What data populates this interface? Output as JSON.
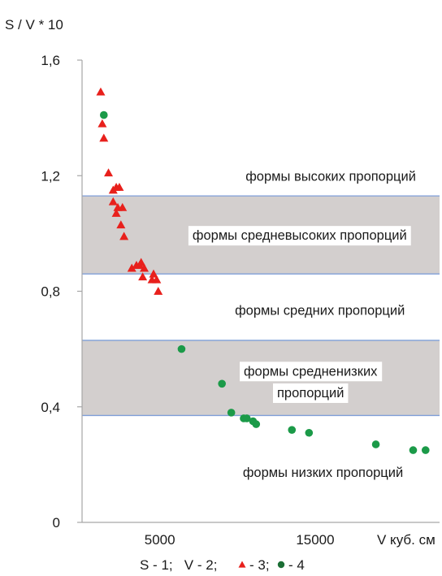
{
  "chart_data": {
    "type": "scatter",
    "title": "",
    "ylabel": "S / V * 10",
    "xlabel": "V куб. см",
    "xlim": [
      0,
      23000
    ],
    "ylim": [
      0,
      1.6
    ],
    "x_tick_values": [
      5000,
      15000
    ],
    "x_tick_labels": [
      "5000",
      "15000"
    ],
    "y_tick_values": [
      0,
      0.4,
      0.8,
      1.2,
      1.6
    ],
    "y_tick_labels": [
      "0",
      "0,4",
      "0,8",
      "1,2",
      "1,6"
    ],
    "grid": false,
    "bands": [
      {
        "y0": 0.86,
        "y1": 1.13,
        "fill": "#d3cfce",
        "edge": "#7f9fd8"
      },
      {
        "y0": 0.37,
        "y1": 0.63,
        "fill": "#d3cfce",
        "edge": "#7f9fd8"
      }
    ],
    "region_labels": [
      {
        "text": "формы высоких пропорций",
        "x": 16000,
        "y": 1.2,
        "boxed": false
      },
      {
        "text": "формы средневысоких пропорций",
        "x": 14000,
        "y": 0.995,
        "boxed": true
      },
      {
        "text": "формы средних пропорций",
        "x": 15300,
        "y": 0.735,
        "boxed": false
      },
      {
        "text": "формы средненизких",
        "x": 14700,
        "y": 0.525,
        "boxed": true
      },
      {
        "text": "пропорций",
        "x": 14700,
        "y": 0.45,
        "boxed": true
      },
      {
        "text": "формы низких пропорций",
        "x": 15500,
        "y": 0.175,
        "boxed": false
      }
    ],
    "series": [
      {
        "marker": "triangle",
        "color": "#e8201c",
        "points": [
          [
            1200,
            1.49
          ],
          [
            1300,
            1.38
          ],
          [
            1400,
            1.33
          ],
          [
            1700,
            1.21
          ],
          [
            2000,
            1.15
          ],
          [
            2200,
            1.16
          ],
          [
            2400,
            1.16
          ],
          [
            2000,
            1.11
          ],
          [
            2300,
            1.09
          ],
          [
            2200,
            1.07
          ],
          [
            2600,
            1.09
          ],
          [
            2500,
            1.03
          ],
          [
            2700,
            0.99
          ],
          [
            3200,
            0.88
          ],
          [
            3500,
            0.89
          ],
          [
            3800,
            0.9
          ],
          [
            3700,
            0.89
          ],
          [
            4000,
            0.88
          ],
          [
            4600,
            0.86
          ],
          [
            3900,
            0.85
          ],
          [
            4500,
            0.84
          ],
          [
            4800,
            0.84
          ],
          [
            4900,
            0.8
          ]
        ]
      },
      {
        "marker": "circle",
        "color": "#1b9a48",
        "points": [
          [
            1400,
            1.41
          ],
          [
            6400,
            0.6
          ],
          [
            9000,
            0.48
          ],
          [
            9600,
            0.38
          ],
          [
            10400,
            0.36
          ],
          [
            10600,
            0.36
          ],
          [
            11000,
            0.35
          ],
          [
            11200,
            0.34
          ],
          [
            13500,
            0.32
          ],
          [
            14600,
            0.31
          ],
          [
            18900,
            0.27
          ],
          [
            21300,
            0.25
          ],
          [
            22100,
            0.25
          ]
        ]
      }
    ],
    "legend": {
      "placement": "bottom",
      "plain_text": "S - 1;   V - 2;",
      "marker_items": [
        {
          "marker": "triangle",
          "color": "#e8201c",
          "text": "- 3;"
        },
        {
          "marker": "circle",
          "color": "#1b6e35",
          "text": "- 4"
        }
      ]
    }
  }
}
